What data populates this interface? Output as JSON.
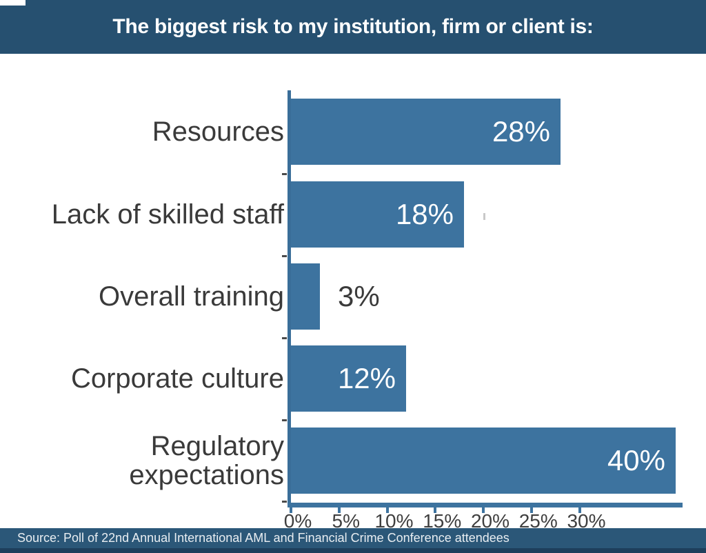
{
  "header": {
    "title": "The biggest risk to my institution, firm or client is:",
    "bg_color": "#265070",
    "text_color": "#ffffff"
  },
  "chart_data": {
    "type": "bar",
    "orientation": "horizontal",
    "title": "The biggest risk to my institution, firm or client is:",
    "categories": [
      "Resources",
      "Lack of skilled staff",
      "Overall training",
      "Corporate culture",
      "Regulatory expectations"
    ],
    "values": [
      28,
      18,
      3,
      12,
      40
    ],
    "value_labels": [
      "28%",
      "18%",
      "3%",
      "12%",
      "40%"
    ],
    "x_tick_labels": [
      "0%",
      "5%",
      "10%",
      "15%",
      "20%",
      "25%",
      "30%"
    ],
    "x_tick_values": [
      0,
      5,
      10,
      15,
      20,
      25,
      30
    ],
    "xlim": [
      0,
      42
    ],
    "grid": false,
    "legend": false,
    "bar_color": "#3d739f",
    "axis_color": "#3d739f",
    "category_label_color": "#3a3a3a",
    "value_label_inside_color": "#ffffff",
    "value_label_outside_color": "#3a3a3a",
    "tick_label_color": "#3f3f3f"
  },
  "footer": {
    "source": "Source: Poll of 22nd Annual International AML and Financial Crime Conference attendees",
    "bg_color": "#2b5778",
    "strip_color": "#1e3f5c",
    "text_color": "#e9eef2"
  }
}
